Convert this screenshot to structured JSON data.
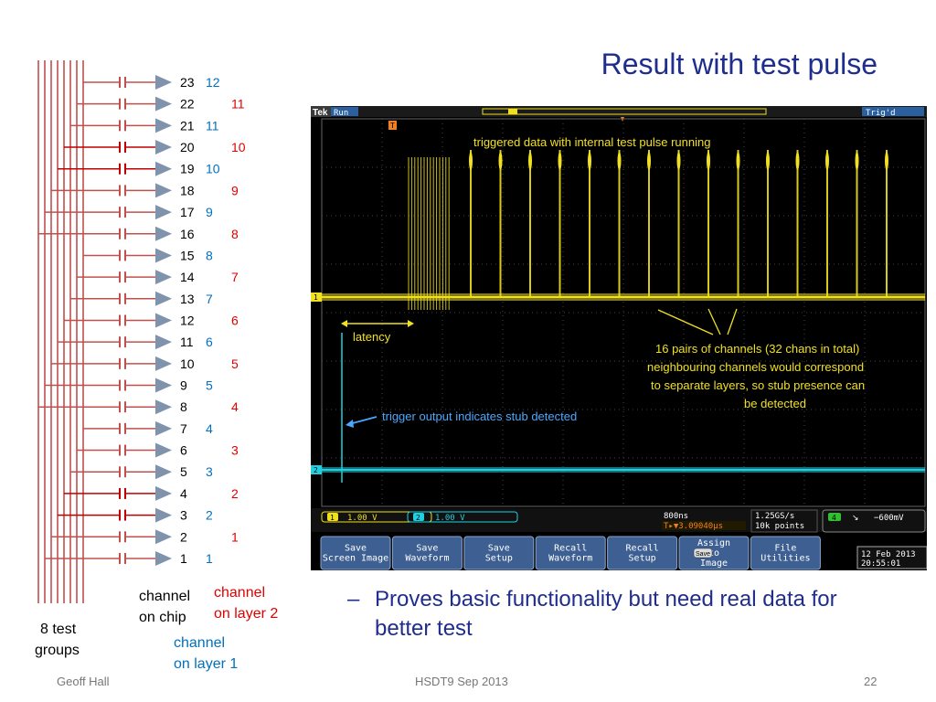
{
  "slide": {
    "title": "Result with test pulse",
    "bullet": "Proves basic functionality but need real data for better test",
    "bullet_dash": "–",
    "footer_left": "Geoff Hall",
    "footer_center": "HSDT9 Sep 2013",
    "footer_right": "22"
  },
  "diagram": {
    "rows": [
      {
        "chip": "23",
        "layer1": "12",
        "layer2": ""
      },
      {
        "chip": "22",
        "layer1": "",
        "layer2": "11"
      },
      {
        "chip": "21",
        "layer1": "11",
        "layer2": ""
      },
      {
        "chip": "20",
        "layer1": "",
        "layer2": "10"
      },
      {
        "chip": "19",
        "layer1": "10",
        "layer2": ""
      },
      {
        "chip": "18",
        "layer1": "",
        "layer2": "9"
      },
      {
        "chip": "17",
        "layer1": "9",
        "layer2": ""
      },
      {
        "chip": "16",
        "layer1": "",
        "layer2": "8"
      },
      {
        "chip": "15",
        "layer1": "8",
        "layer2": ""
      },
      {
        "chip": "14",
        "layer1": "",
        "layer2": "7"
      },
      {
        "chip": "13",
        "layer1": "7",
        "layer2": ""
      },
      {
        "chip": "12",
        "layer1": "",
        "layer2": "6"
      },
      {
        "chip": "11",
        "layer1": "6",
        "layer2": ""
      },
      {
        "chip": "10",
        "layer1": "",
        "layer2": "5"
      },
      {
        "chip": "9",
        "layer1": "5",
        "layer2": ""
      },
      {
        "chip": "8",
        "layer1": "",
        "layer2": "4"
      },
      {
        "chip": "7",
        "layer1": "4",
        "layer2": ""
      },
      {
        "chip": "6",
        "layer1": "",
        "layer2": "3"
      },
      {
        "chip": "5",
        "layer1": "3",
        "layer2": ""
      },
      {
        "chip": "4",
        "layer1": "",
        "layer2": "2"
      },
      {
        "chip": "3",
        "layer1": "2",
        "layer2": ""
      },
      {
        "chip": "2",
        "layer1": "",
        "layer2": "1"
      },
      {
        "chip": "1",
        "layer1": "1",
        "layer2": ""
      }
    ],
    "label_chip": [
      "channel",
      "on chip"
    ],
    "label_layer2": [
      "channel",
      "on layer 2"
    ],
    "label_layer1": [
      "channel",
      "on layer 1"
    ],
    "label_groups": [
      "8 test",
      "groups"
    ],
    "colors": {
      "wire": "#c0504d",
      "wire_strong": "#c00000",
      "layer1": "#0070c0",
      "layer2": "#e00000",
      "buffer": "#7f93ad"
    }
  },
  "scope": {
    "brand": "Tek",
    "run_state": "Run",
    "trig_state": "Trig'd",
    "annotation_top": "triggered data with internal test pulse running",
    "annotation_latency": "latency",
    "annotation_pairs": [
      "16 pairs of channels (32 chans in total)",
      "neighbouring channels would correspond",
      "to separate layers, so stub presence can",
      "be detected"
    ],
    "annotation_trigger": "trigger output indicates stub detected",
    "ch1_marker": "1",
    "ch2_marker": "2",
    "ch1_scale": "1.00 V",
    "ch2_scale": "1.00 V",
    "ch1_badge": "1",
    "ch2_badge": "2",
    "timebase": "800ns",
    "trigger_pos": "T▸▼3.09040µs",
    "sample_rate": "1.25GS/s",
    "record_length": "10k points",
    "trig_source": "4",
    "trig_slope": "↘",
    "trig_level": "−600mV",
    "menu": [
      {
        "line1": "Save",
        "line2": "Screen Image"
      },
      {
        "line1": "Save",
        "line2": "Waveform"
      },
      {
        "line1": "Save",
        "line2": "Setup"
      },
      {
        "line1": "Recall",
        "line2": "Waveform"
      },
      {
        "line1": "Recall",
        "line2": "Setup"
      },
      {
        "line1": "Assign",
        "line2": "to",
        "line3": "Image",
        "chip": "Save"
      },
      {
        "line1": "File",
        "line2": "Utilities"
      }
    ],
    "date": "12 Feb 2013",
    "time": "20:55:01",
    "colors": {
      "ch1": "#f0e020",
      "ch2": "#20d0e0",
      "annotation_yellow": "#f0e020",
      "annotation_blue": "#4aa8ff",
      "grid": "#555",
      "menu_bg": "#4a6a9a"
    }
  }
}
